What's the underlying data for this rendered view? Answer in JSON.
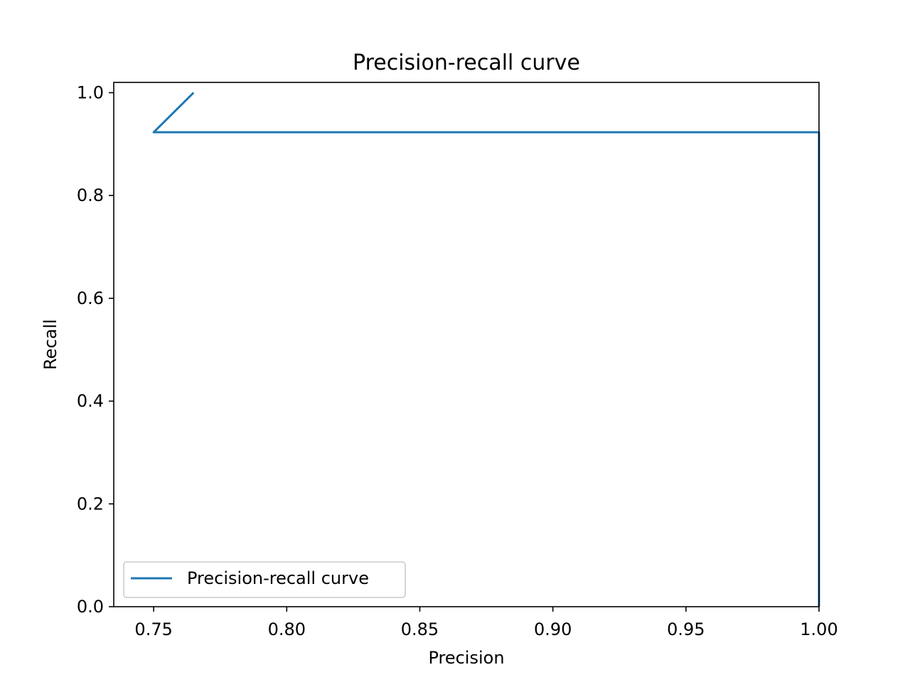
{
  "chart_data": {
    "type": "line",
    "title": "Precision-recall curve",
    "xlabel": "Precision",
    "ylabel": "Recall",
    "xlim": [
      0.735,
      1.0
    ],
    "ylim": [
      0.0,
      1.02
    ],
    "x_ticks": [
      "0.75",
      "0.80",
      "0.85",
      "0.90",
      "0.95",
      "1.00"
    ],
    "y_ticks": [
      "0.0",
      "0.2",
      "0.4",
      "0.6",
      "0.8",
      "1.0"
    ],
    "grid": false,
    "legend": {
      "position": "lower-left",
      "entries": [
        "Precision-recall curve"
      ]
    },
    "series": [
      {
        "name": "Precision-recall curve",
        "color": "#1f77b4",
        "x": [
          0.765,
          0.75,
          1.0,
          1.0
        ],
        "y": [
          1.0,
          0.923,
          0.923,
          0.0
        ]
      }
    ]
  }
}
